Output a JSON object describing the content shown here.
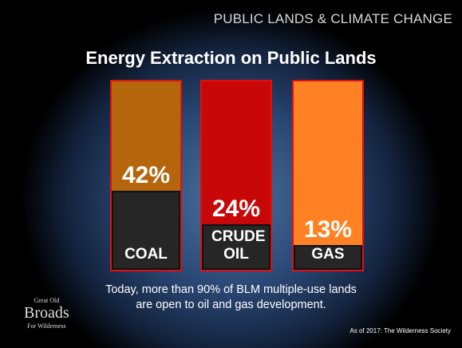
{
  "chart_data": {
    "type": "bar",
    "header": "PUBLIC LANDS & CLIMATE CHANGE",
    "title": "Energy Extraction on Public Lands",
    "categories": [
      "COAL",
      "CRUDE OIL",
      "GAS"
    ],
    "values": [
      42,
      24,
      13
    ],
    "value_labels": [
      "42%",
      "24%",
      "13%"
    ],
    "colors": [
      "#b5650c",
      "#c80808",
      "#ff8124"
    ],
    "ylim": [
      0,
      100
    ],
    "annotation": "Today, more than 90% of BLM multiple-use lands are open to oil and gas development.",
    "source": "As of 2017: The Wilderness Society",
    "logo": [
      "Great Old",
      "Broads",
      "For Wilderness"
    ]
  }
}
